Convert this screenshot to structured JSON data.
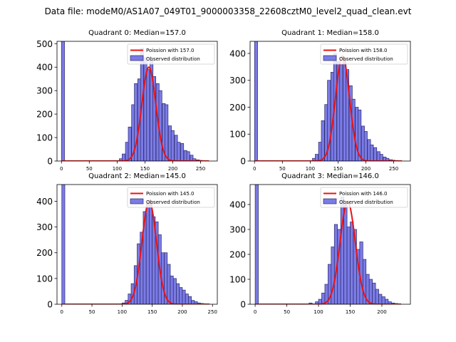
{
  "figure": {
    "suptitle": "Data file: modeM0/AS1A07_049T01_9000003358_22608cztM0_level2_quad_clean.evt"
  },
  "colors": {
    "bar_fill": "#7b7be6",
    "bar_edge": "#2a2a6a",
    "poisson_line": "#ee1111"
  },
  "chart_data": [
    {
      "type": "bar",
      "title": "Quadrant 0: Median=157.0",
      "legend": [
        "Poission with 157.0",
        "Observed distribution"
      ],
      "legend_placement": "top-right",
      "xlim": [
        -8,
        280
      ],
      "ylim": [
        0,
        510
      ],
      "xticks": [
        0,
        50,
        100,
        150,
        200,
        250
      ],
      "yticks": [
        0,
        100,
        200,
        300,
        400,
        500
      ],
      "bin_width": 5.5,
      "bins": [
        [
          0,
          510
        ],
        [
          104,
          10
        ],
        [
          109,
          30
        ],
        [
          115,
          80
        ],
        [
          120,
          145
        ],
        [
          126,
          240
        ],
        [
          131,
          330
        ],
        [
          137,
          350
        ],
        [
          142,
          480
        ],
        [
          148,
          440
        ],
        [
          153,
          390
        ],
        [
          159,
          430
        ],
        [
          164,
          360
        ],
        [
          170,
          330
        ],
        [
          175,
          300
        ],
        [
          181,
          245
        ],
        [
          186,
          240
        ],
        [
          192,
          150
        ],
        [
          197,
          130
        ],
        [
          203,
          110
        ],
        [
          208,
          80
        ],
        [
          214,
          75
        ],
        [
          220,
          45
        ],
        [
          225,
          40
        ],
        [
          231,
          25
        ],
        [
          236,
          10
        ],
        [
          242,
          5
        ],
        [
          247,
          3
        ],
        [
          253,
          2
        ]
      ],
      "poisson_mean": 157.0,
      "poisson_peak": 400,
      "poisson_range": [
        0,
        265
      ]
    },
    {
      "type": "bar",
      "title": "Quadrant 1: Median=158.0",
      "legend": [
        "Poission with 158.0",
        "Observed distribution"
      ],
      "legend_placement": "top-right",
      "xlim": [
        -8,
        280
      ],
      "ylim": [
        0,
        445
      ],
      "xticks": [
        0,
        50,
        100,
        150,
        200,
        250
      ],
      "yticks": [
        0,
        100,
        200,
        300,
        400
      ],
      "bin_width": 5.5,
      "bins": [
        [
          0,
          445
        ],
        [
          104,
          10
        ],
        [
          109,
          25
        ],
        [
          115,
          70
        ],
        [
          120,
          150
        ],
        [
          126,
          210
        ],
        [
          131,
          300
        ],
        [
          137,
          330
        ],
        [
          142,
          400
        ],
        [
          148,
          370
        ],
        [
          153,
          360
        ],
        [
          159,
          380
        ],
        [
          164,
          340
        ],
        [
          170,
          280
        ],
        [
          175,
          230
        ],
        [
          181,
          200
        ],
        [
          186,
          190
        ],
        [
          192,
          130
        ],
        [
          197,
          110
        ],
        [
          203,
          80
        ],
        [
          208,
          60
        ],
        [
          214,
          50
        ],
        [
          220,
          35
        ],
        [
          225,
          25
        ],
        [
          231,
          15
        ],
        [
          236,
          10
        ],
        [
          242,
          5
        ],
        [
          247,
          3
        ],
        [
          253,
          2
        ]
      ],
      "poisson_mean": 158.0,
      "poisson_peak": 390,
      "poisson_range": [
        0,
        265
      ]
    },
    {
      "type": "bar",
      "title": "Quadrant 2: Median=145.0",
      "legend": [
        "Poission with 145.0",
        "Observed distribution"
      ],
      "legend_placement": "top-right",
      "xlim": [
        -8,
        258
      ],
      "ylim": [
        0,
        465
      ],
      "xticks": [
        0,
        50,
        100,
        150,
        200,
        250
      ],
      "yticks": [
        0,
        100,
        200,
        300,
        400
      ],
      "bin_width": 5.0,
      "bins": [
        [
          0,
          465
        ],
        [
          100,
          5
        ],
        [
          105,
          15
        ],
        [
          110,
          40
        ],
        [
          115,
          80
        ],
        [
          120,
          150
        ],
        [
          125,
          235
        ],
        [
          130,
          280
        ],
        [
          135,
          360
        ],
        [
          140,
          390
        ],
        [
          145,
          400
        ],
        [
          150,
          340
        ],
        [
          155,
          320
        ],
        [
          160,
          270
        ],
        [
          165,
          200
        ],
        [
          170,
          200
        ],
        [
          175,
          155
        ],
        [
          180,
          110
        ],
        [
          185,
          100
        ],
        [
          190,
          80
        ],
        [
          195,
          65
        ],
        [
          200,
          55
        ],
        [
          205,
          40
        ],
        [
          210,
          30
        ],
        [
          215,
          15
        ],
        [
          220,
          10
        ],
        [
          225,
          5
        ],
        [
          230,
          3
        ],
        [
          235,
          2
        ],
        [
          240,
          1
        ]
      ],
      "poisson_mean": 145.0,
      "poisson_peak": 400,
      "poisson_range": [
        0,
        245
      ]
    },
    {
      "type": "bar",
      "title": "Quadrant 3: Median=146.0",
      "legend": [
        "Poission with 146.0",
        "Observed distribution"
      ],
      "legend_placement": "top-right",
      "xlim": [
        -8,
        245
      ],
      "ylim": [
        0,
        480
      ],
      "xticks": [
        0,
        50,
        100,
        150,
        200
      ],
      "yticks": [
        0,
        100,
        200,
        300,
        400
      ],
      "bin_width": 5.0,
      "bins": [
        [
          0,
          480
        ],
        [
          85,
          5
        ],
        [
          95,
          10
        ],
        [
          100,
          20
        ],
        [
          105,
          45
        ],
        [
          110,
          80
        ],
        [
          115,
          160
        ],
        [
          120,
          230
        ],
        [
          125,
          320
        ],
        [
          130,
          300
        ],
        [
          135,
          430
        ],
        [
          140,
          400
        ],
        [
          145,
          310
        ],
        [
          150,
          330
        ],
        [
          155,
          300
        ],
        [
          160,
          220
        ],
        [
          165,
          250
        ],
        [
          170,
          180
        ],
        [
          175,
          120
        ],
        [
          180,
          100
        ],
        [
          185,
          85
        ],
        [
          190,
          60
        ],
        [
          195,
          40
        ],
        [
          200,
          30
        ],
        [
          205,
          20
        ],
        [
          210,
          10
        ],
        [
          215,
          5
        ],
        [
          220,
          3
        ],
        [
          225,
          2
        ]
      ],
      "poisson_mean": 146.0,
      "poisson_peak": 410,
      "poisson_range": [
        0,
        230
      ]
    }
  ]
}
